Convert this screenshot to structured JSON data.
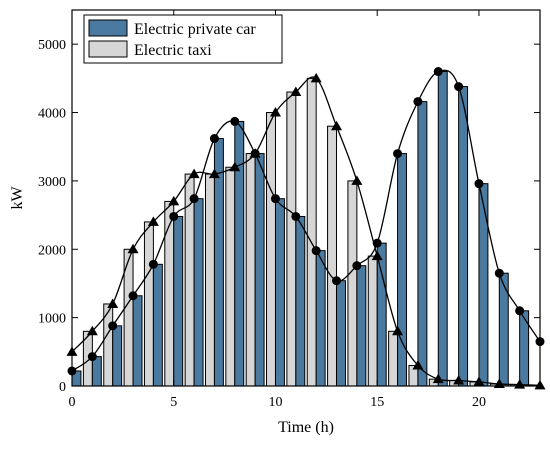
{
  "chart_data": {
    "type": "bar",
    "xlabel": "Time (h)",
    "ylabel": "kW",
    "xlim": [
      0,
      23
    ],
    "ylim": [
      0,
      5500
    ],
    "xticks": [
      0,
      5,
      10,
      15,
      20
    ],
    "yticks": [
      0,
      1000,
      2000,
      3000,
      4000,
      5000
    ],
    "grid": false,
    "legend_position": "top-left",
    "x": [
      0,
      1,
      2,
      3,
      4,
      5,
      6,
      7,
      8,
      9,
      10,
      11,
      12,
      13,
      14,
      15,
      16,
      17,
      18,
      19,
      20,
      21,
      22,
      23
    ],
    "series": [
      {
        "name": "Electric private car",
        "color": "#4b7aa0",
        "marker": "circle",
        "values": [
          220,
          430,
          880,
          1320,
          1780,
          2480,
          2740,
          3620,
          3870,
          3400,
          2740,
          2480,
          1980,
          1540,
          1760,
          2090,
          3400,
          4160,
          4600,
          4380,
          2960,
          1650,
          1100,
          650
        ]
      },
      {
        "name": "Electric taxi",
        "color": "#d6d6d6",
        "marker": "triangle",
        "values": [
          500,
          800,
          1200,
          2000,
          2400,
          2700,
          3100,
          3100,
          3200,
          3400,
          4000,
          4300,
          4500,
          3800,
          3000,
          1900,
          800,
          300,
          100,
          80,
          60,
          30,
          20,
          10
        ]
      }
    ]
  }
}
